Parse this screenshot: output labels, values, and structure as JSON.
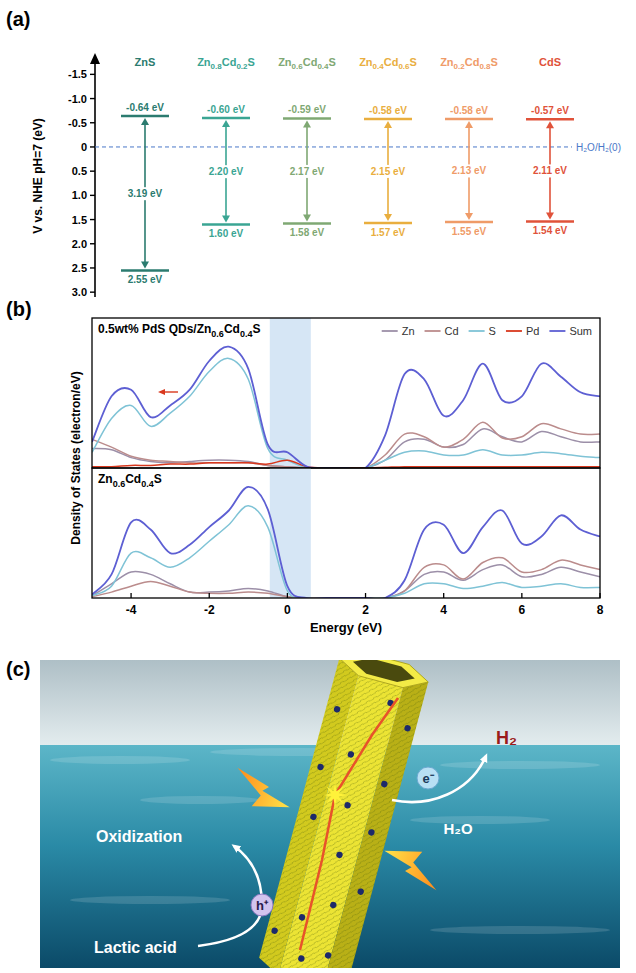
{
  "panel_a": {
    "letter": "(a)",
    "ylabel": "V vs. NHE pH=7 (eV)",
    "ylim": [
      -1.9,
      3.1
    ],
    "yticks": [
      -1.5,
      {
        "value": -1.0,
        "label": "-1.0"
      },
      -0.5,
      0,
      0.5,
      {
        "value": 1.0,
        "label": "1.0"
      },
      1.5,
      {
        "value": 2.0,
        "label": "2.0"
      },
      2.5,
      {
        "value": 3.0,
        "label": "3.0"
      }
    ],
    "reference": {
      "value": 0,
      "label": "H₂O/H₂(0)"
    },
    "materials": [
      {
        "name": "ZnS",
        "color": "#2b7b6f",
        "cb": {
          "value": -0.64,
          "label": "-0.64 eV"
        },
        "gap": {
          "value": 3.19,
          "label": "3.19 eV"
        },
        "vb": {
          "value": 2.55,
          "label": "2.55 eV"
        }
      },
      {
        "name": "Zn0.8Cd0.2S",
        "color": "#3aa593",
        "cb": {
          "value": -0.6,
          "label": "-0.60 eV"
        },
        "gap": {
          "value": 2.2,
          "label": "2.20 eV"
        },
        "vb": {
          "value": 1.6,
          "label": "1.60 eV"
        }
      },
      {
        "name": "Zn0.6Cd0.4S",
        "color": "#7fa873",
        "cb": {
          "value": -0.59,
          "label": "-0.59 eV"
        },
        "gap": {
          "value": 2.17,
          "label": "2.17 eV"
        },
        "vb": {
          "value": 1.58,
          "label": "1.58 eV"
        }
      },
      {
        "name": "Zn0.4Cd0.6S",
        "color": "#e9ae3e",
        "cb": {
          "value": -0.58,
          "label": "-0.58 eV"
        },
        "gap": {
          "value": 2.15,
          "label": "2.15 eV"
        },
        "vb": {
          "value": 1.57,
          "label": "1.57 eV"
        }
      },
      {
        "name": "Zn0.2Cd0.8S",
        "color": "#ef9b68",
        "cb": {
          "value": -0.58,
          "label": "-0.58 eV"
        },
        "gap": {
          "value": 2.13,
          "label": "2.13 eV"
        },
        "vb": {
          "value": 1.55,
          "label": "1.55 eV"
        }
      },
      {
        "name": "CdS",
        "color": "#e0523a",
        "cb": {
          "value": -0.57,
          "label": "-0.57 eV"
        },
        "gap": {
          "value": 2.11,
          "label": "2.11 eV"
        },
        "vb": {
          "value": 1.54,
          "label": "1.54 eV"
        }
      }
    ]
  },
  "panel_b": {
    "letter": "(b)"
  },
  "chart_data": [
    {
      "type": "line",
      "title": "0.5wt% PdS QDs/Zn0.6Cd0.4S",
      "ylabel": "Density of States (electron/eV)",
      "x": [
        -5,
        -4.5,
        -4,
        -3.5,
        -3,
        -2.5,
        -2,
        -1.5,
        -1,
        -0.5,
        0,
        0.5,
        1,
        1.5,
        2,
        2.5,
        3,
        3.5,
        4,
        4.5,
        5,
        5.5,
        6,
        6.5,
        7,
        7.5,
        8
      ],
      "xlim": [
        -5,
        8
      ],
      "ylim": [
        0,
        11.5
      ],
      "tick_labels": false,
      "legend": "top-right",
      "highlight": [
        -0.45,
        0.6
      ],
      "series": [
        {
          "name": "Zn",
          "color": "#9c8fa8",
          "values": [
            1.5,
            1.4,
            0.8,
            0.5,
            0.4,
            0.5,
            0.6,
            0.6,
            0.5,
            0.2,
            0.1,
            0,
            0,
            0,
            0,
            0.6,
            2.0,
            2.2,
            1.6,
            1.8,
            3.0,
            2.4,
            2.0,
            2.8,
            2.4,
            2.0,
            2.0
          ]
        },
        {
          "name": "Cd",
          "color": "#bb8c8c",
          "values": [
            2.2,
            1.6,
            0.9,
            0.6,
            0.5,
            0.4,
            0.4,
            0.4,
            0.4,
            0.2,
            0.1,
            0,
            0,
            0,
            0,
            1.0,
            2.6,
            2.4,
            1.6,
            2.2,
            3.5,
            2.3,
            2.4,
            3.4,
            3.0,
            2.6,
            2.6
          ]
        },
        {
          "name": "S",
          "color": "#7fc3d6",
          "values": [
            1.2,
            3.8,
            4.8,
            3.2,
            4.2,
            5.5,
            7.4,
            8.4,
            6.8,
            1.5,
            0.6,
            0,
            0,
            0,
            0,
            0.6,
            1.2,
            1.3,
            1.0,
            1.0,
            1.4,
            1.0,
            1.0,
            1.2,
            1.1,
            0.9,
            0.8
          ]
        },
        {
          "name": "Pd",
          "color": "#d9381e",
          "values": [
            0.1,
            0.1,
            0.2,
            0.2,
            0.3,
            0.3,
            0.4,
            0.4,
            0.4,
            0.3,
            0.6,
            0.1,
            0,
            0,
            0,
            0.05,
            0.1,
            0.1,
            0.1,
            0.1,
            0.1,
            0.1,
            0.1,
            0.1,
            0.1,
            0.1,
            0.1
          ]
        },
        {
          "name": "Sum",
          "color": "#5d5fd3",
          "values": [
            2.0,
            5.5,
            6.0,
            3.9,
            4.8,
            6.0,
            8.2,
            9.3,
            7.6,
            1.8,
            1.2,
            0.1,
            0,
            0,
            0,
            2.5,
            7.2,
            6.8,
            4.0,
            5.2,
            8.0,
            5.2,
            5.5,
            8.0,
            7.0,
            5.8,
            5.5
          ]
        }
      ]
    },
    {
      "type": "line",
      "title": "Zn0.6Cd0.4S",
      "xlabel": "Energy (eV)",
      "x": [
        -5,
        -4.5,
        -4,
        -3.5,
        -3,
        -2.5,
        -2,
        -1.5,
        -1,
        -0.5,
        0,
        0.5,
        1,
        1.5,
        2,
        2.5,
        3,
        3.5,
        4,
        4.5,
        5,
        5.5,
        6,
        6.5,
        7,
        7.5,
        8
      ],
      "xlim": [
        -5,
        8
      ],
      "ylim": [
        0,
        11
      ],
      "xticks": [
        -4,
        -2,
        0,
        2,
        4,
        6,
        8
      ],
      "tick_labels": "x",
      "highlight": [
        -0.45,
        0.6
      ],
      "series": [
        {
          "color": "#9c8fa8",
          "values": [
            0.2,
            1.2,
            2.2,
            2.0,
            1.2,
            0.5,
            0.5,
            0.6,
            0.8,
            0.6,
            0.1,
            0,
            0,
            0,
            0,
            0,
            0.6,
            2.0,
            2.2,
            1.5,
            2.4,
            2.8,
            1.8,
            2.0,
            2.6,
            2.2,
            1.8
          ]
        },
        {
          "color": "#bb8c8c",
          "values": [
            0.1,
            0.5,
            1.0,
            1.4,
            1.0,
            0.5,
            0.4,
            0.4,
            0.5,
            0.4,
            0.1,
            0,
            0,
            0,
            0,
            0,
            0.6,
            2.6,
            2.8,
            1.6,
            3.0,
            3.4,
            2.2,
            2.4,
            3.2,
            2.8,
            2.4
          ]
        },
        {
          "color": "#7fc3d6",
          "values": [
            0.2,
            1.0,
            3.8,
            3.4,
            2.6,
            3.4,
            4.8,
            6.2,
            7.8,
            6.0,
            0.6,
            0,
            0,
            0,
            0,
            0,
            0.4,
            1.2,
            1.2,
            0.8,
            1.0,
            1.3,
            0.9,
            1.0,
            1.2,
            0.9,
            0.9
          ]
        },
        {
          "color": "#5d5fd3",
          "values": [
            0.3,
            2.0,
            6.4,
            5.8,
            3.8,
            4.5,
            6.0,
            7.4,
            9.4,
            7.5,
            1.0,
            0,
            0,
            0,
            0,
            0,
            1.5,
            5.8,
            6.2,
            3.8,
            6.0,
            7.4,
            4.6,
            5.2,
            7.0,
            5.8,
            5.2
          ]
        }
      ]
    }
  ],
  "panel_c": {
    "letter": "(c)",
    "product": "H₂",
    "electron": "e⁻",
    "reactant": "H₂O",
    "oxidation": "Oxidization",
    "hole": "h⁺",
    "sacrificial_agent": "Lactic acid"
  }
}
